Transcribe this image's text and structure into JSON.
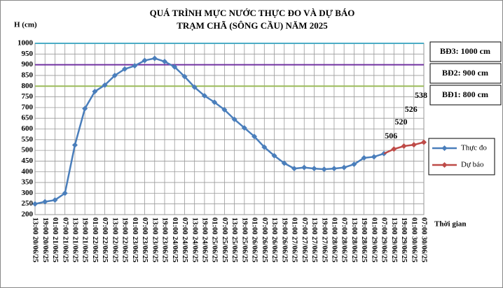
{
  "chart_data": {
    "type": "line",
    "title": [
      "QUÁ TRÌNH MỰC NƯỚC THỰC ĐO VÀ DỰ BÁO",
      "TRẠM CHÃ (SÔNG CẦU) NĂM 2025"
    ],
    "y_label": "H (cm)",
    "x_label": "Thời gian",
    "categories": [
      "13:00 20/06/25",
      "19:00 20/06/25",
      "01:00 21/06/25",
      "07:00 21/06/25",
      "13:00 21/06/25",
      "19:00 21/06/25",
      "01:00 22/06/25",
      "07:00 22/06/25",
      "13:00 22/06/25",
      "19:00 22/06/25",
      "01:00 23/06/25",
      "07:00 23/06/25",
      "13:00 23/06/25",
      "19:00 23/06/25",
      "01:00 24/06/25",
      "07:00 24/06/25",
      "13:00 24/06/25",
      "19:00 24/06/25",
      "01:00 25/06/25",
      "07:00 25/06/25",
      "13:00 25/06/25",
      "19:00 25/06/25",
      "01:00 26/06/25",
      "07:00 26/06/25",
      "13:00 26/06/25",
      "19:00 26/06/25",
      "01:00 27/06/25",
      "07:00 27/06/25",
      "13:00 27/06/25",
      "19:00 27/06/25",
      "01:00 28/06/25",
      "07:00 28/06/25",
      "13:00 28/06/25",
      "19:00 28/06/25",
      "01:00 29/06/25",
      "07:00 29/06/25",
      "13:00 29/06/25",
      "19:00 29/06/25",
      "01:00 30/06/25",
      "07:00 30/06/25"
    ],
    "series": [
      {
        "name": "Thực đo",
        "color": "#4a7ebb",
        "values": [
          250,
          260,
          268,
          300,
          525,
          695,
          775,
          805,
          850,
          880,
          895,
          920,
          930,
          915,
          890,
          845,
          795,
          755,
          725,
          690,
          645,
          605,
          565,
          515,
          475,
          440,
          415,
          420,
          415,
          412,
          415,
          420,
          435,
          465,
          470,
          485,
          null,
          null,
          null,
          null
        ]
      },
      {
        "name": "Dự báo",
        "color": "#be4b48",
        "values": [
          null,
          null,
          null,
          null,
          null,
          null,
          null,
          null,
          null,
          null,
          null,
          null,
          null,
          null,
          null,
          null,
          null,
          null,
          null,
          null,
          null,
          null,
          null,
          null,
          null,
          null,
          null,
          null,
          null,
          null,
          null,
          null,
          null,
          null,
          null,
          null,
          506,
          520,
          526,
          538
        ],
        "data_labels": true
      }
    ],
    "reference_lines": [
      {
        "label": "BĐ3: 1000 cm",
        "value": 1000,
        "color": "#4bacc6"
      },
      {
        "label": "BĐ2: 900 cm",
        "value": 900,
        "color": "#7030a0"
      },
      {
        "label": "BĐ1: 800 cm",
        "value": 800,
        "color": "#9bbb59"
      }
    ],
    "ylim": [
      200,
      1000
    ],
    "yticks": [
      200,
      250,
      300,
      350,
      400,
      450,
      500,
      550,
      600,
      650,
      700,
      750,
      800,
      850,
      900,
      950,
      1000
    ],
    "grid": true
  }
}
